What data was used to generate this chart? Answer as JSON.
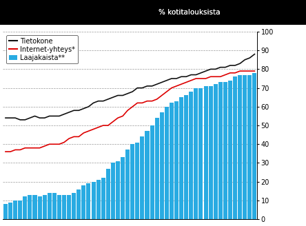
{
  "ylabel_text": "% kotitalouksista",
  "ylim": [
    0,
    100
  ],
  "yticks": [
    0,
    10,
    20,
    30,
    40,
    50,
    60,
    70,
    80,
    90,
    100
  ],
  "bar_color": "#29ABE2",
  "line_tietokone_color": "#111111",
  "line_internet_color": "#DD0000",
  "legend_labels": [
    "Tietokone",
    "Internet-yhteys*",
    "Laajakaista**"
  ],
  "n_bars": 52,
  "laajakaista": [
    8,
    9,
    10,
    10,
    12,
    13,
    13,
    12,
    13,
    14,
    14,
    13,
    13,
    13,
    14,
    16,
    18,
    19,
    20,
    21,
    22,
    27,
    30,
    31,
    33,
    37,
    40,
    41,
    44,
    47,
    50,
    54,
    57,
    60,
    62,
    63,
    65,
    66,
    68,
    70,
    70,
    71,
    71,
    72,
    73,
    73,
    74,
    76,
    77,
    77,
    77,
    78
  ],
  "tietokone": [
    54,
    54,
    54,
    53,
    53,
    54,
    55,
    54,
    54,
    55,
    55,
    55,
    56,
    57,
    58,
    58,
    59,
    60,
    62,
    63,
    63,
    64,
    65,
    66,
    66,
    67,
    68,
    70,
    70,
    71,
    71,
    72,
    73,
    74,
    75,
    75,
    76,
    76,
    77,
    77,
    78,
    79,
    80,
    80,
    81,
    81,
    82,
    82,
    83,
    85,
    86,
    88
  ],
  "internet": [
    36,
    36,
    37,
    37,
    38,
    38,
    38,
    38,
    39,
    40,
    40,
    40,
    41,
    43,
    44,
    44,
    46,
    47,
    48,
    49,
    50,
    50,
    52,
    54,
    55,
    58,
    60,
    62,
    62,
    63,
    63,
    64,
    66,
    68,
    70,
    71,
    72,
    73,
    74,
    75,
    75,
    75,
    76,
    76,
    76,
    77,
    78,
    78,
    79,
    79,
    79,
    79
  ],
  "background_color": "#ffffff",
  "top_background_color": "#000000",
  "grid_color": "#999999",
  "line_width": 1.2
}
